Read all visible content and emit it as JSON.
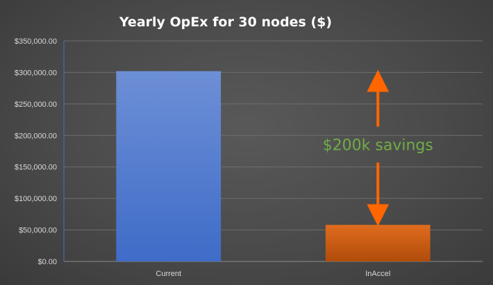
{
  "chart_data": {
    "type": "bar",
    "title": "Yearly OpEx for 30 nodes  ($)",
    "categories": [
      "Current",
      "InAccel"
    ],
    "values": [
      302000,
      58000
    ],
    "ylim": [
      0,
      350000
    ],
    "yticks": [
      0,
      50000,
      100000,
      150000,
      200000,
      250000,
      300000,
      350000
    ],
    "ytick_labels": [
      "$0.00",
      "$50,000.00",
      "$100,000.00",
      "$150,000.00",
      "$200,000.00",
      "$250,000.00",
      "$300,000.00",
      "$350,000.00"
    ],
    "xlabel": "",
    "ylabel": "",
    "grid": true,
    "legend": "none",
    "colors": [
      "#4472c4",
      "#c55a11"
    ],
    "annotation": {
      "text": "$200k savings",
      "color": "#70ad47",
      "arrow_color": "#ff6600",
      "category": "InAccel",
      "from_value": 302000,
      "to_value": 58000
    }
  }
}
